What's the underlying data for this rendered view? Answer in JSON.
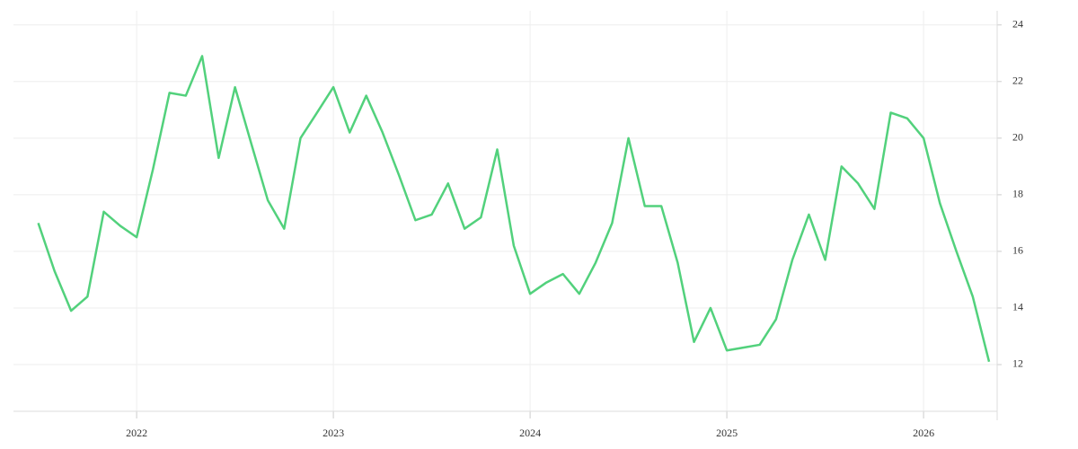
{
  "chart_data": {
    "type": "line",
    "x": [
      2021.5,
      2021.583,
      2021.667,
      2021.75,
      2021.833,
      2021.917,
      2022,
      2022.083,
      2022.167,
      2022.25,
      2022.333,
      2022.417,
      2022.5,
      2022.583,
      2022.667,
      2022.75,
      2022.833,
      2022.917,
      2023,
      2023.083,
      2023.167,
      2023.25,
      2023.333,
      2023.417,
      2023.5,
      2023.583,
      2023.667,
      2023.75,
      2023.833,
      2023.917,
      2024,
      2024.083,
      2024.167,
      2024.25,
      2024.333,
      2024.417,
      2024.5,
      2024.583,
      2024.667,
      2024.75,
      2024.833,
      2024.917,
      2025,
      2025.083,
      2025.167,
      2025.25,
      2025.333,
      2025.417,
      2025.5,
      2025.583,
      2025.667,
      2025.75,
      2025.833,
      2025.917,
      2026,
      2026.083,
      2026.167,
      2026.25,
      2026.333
    ],
    "series": [
      {
        "color": "#52d17c",
        "values": [
          17.0,
          15.3,
          13.9,
          14.4,
          17.4,
          16.9,
          16.5,
          18.9,
          21.6,
          21.5,
          22.9,
          19.3,
          21.8,
          19.8,
          17.8,
          16.8,
          20.0,
          20.9,
          21.8,
          20.2,
          21.5,
          20.2,
          18.7,
          17.1,
          17.3,
          18.4,
          16.8,
          17.2,
          19.6,
          16.2,
          14.5,
          14.9,
          15.2,
          14.5,
          15.6,
          17.0,
          20.0,
          17.6,
          17.6,
          15.6,
          12.8,
          14.0,
          12.5,
          12.6,
          12.7,
          13.6,
          15.7,
          17.3,
          15.7,
          19.0,
          18.4,
          17.5,
          20.9,
          20.7,
          20.0,
          17.7,
          16.0,
          14.4,
          12.1
        ]
      }
    ],
    "xlim": [
      2021.374,
      2026.374
    ],
    "xticks": [
      2022,
      2023,
      2024,
      2025,
      2026
    ],
    "ylim": [
      10.35,
      24.5
    ],
    "yticks": [
      12,
      14,
      16,
      18,
      20,
      22,
      24
    ],
    "grid": true
  }
}
